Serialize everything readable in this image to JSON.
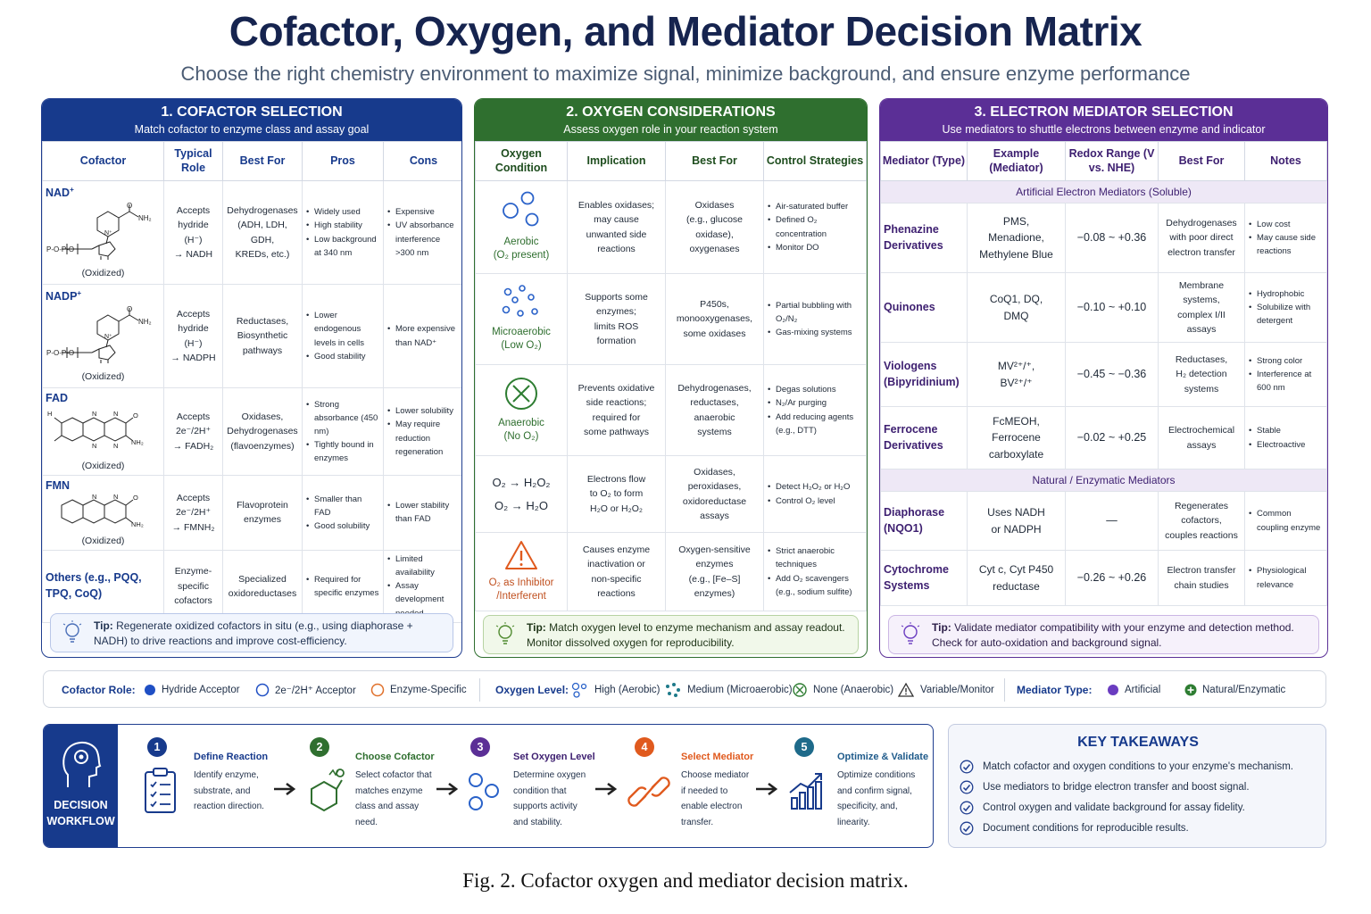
{
  "title": "Cofactor, Oxygen, and Mediator Decision Matrix",
  "subtitle": "Choose the right chemistry environment to maximize signal, minimize background, and ensure enzyme performance",
  "cofactor": {
    "heading": "1. COFACTOR SELECTION",
    "subheading": "Match cofactor to enzyme class and assay goal",
    "columns": [
      "Cofactor",
      "Typical Role",
      "Best For",
      "Pros",
      "Cons"
    ],
    "rows": [
      {
        "name": "NAD",
        "name_sup": "+",
        "state": "(Oxidized)",
        "role": [
          "Accepts",
          "hydride",
          "(H⁻)",
          "→ NADH"
        ],
        "best": [
          "Dehydrogenases",
          "(ADH, LDH, GDH,",
          "KREDs, etc.)"
        ],
        "pros": [
          "Widely used",
          "High stability",
          "Low background at 340 nm"
        ],
        "cons": [
          "Expensive",
          "UV absorbance interference >300 nm"
        ]
      },
      {
        "name": "NADP",
        "name_sup": "+",
        "state": "(Oxidized)",
        "role": [
          "Accepts",
          "hydride",
          "(H⁻)",
          "→ NADPH"
        ],
        "best": [
          "Reductases,",
          "Biosynthetic",
          "pathways"
        ],
        "pros": [
          "Lower endogenous levels in cells",
          "Good stability"
        ],
        "cons": [
          "More expensive than NAD⁺"
        ]
      },
      {
        "name": "FAD",
        "name_sup": "",
        "state": "(Oxidized)",
        "role": [
          "Accepts",
          "2e⁻/2H⁺",
          "→ FADH₂"
        ],
        "best": [
          "Oxidases,",
          "Dehydrogenases",
          "(flavoenzymes)"
        ],
        "pros": [
          "Strong absorbance (450 nm)",
          "Tightly bound in enzymes"
        ],
        "cons": [
          "Lower solubility",
          "May require reduction regeneration"
        ]
      },
      {
        "name": "FMN",
        "name_sup": "",
        "state": "(Oxidized)",
        "role": [
          "Accepts",
          "2e⁻/2H⁺",
          "→ FMNH₂"
        ],
        "best": [
          "Flavoprotein",
          "enzymes"
        ],
        "pros": [
          "Smaller than FAD",
          "Good solubility"
        ],
        "cons": [
          "Lower stability than FAD"
        ]
      },
      {
        "name": "Others (e.g., PQQ, TPQ, CoQ)",
        "name_sup": "",
        "state": "",
        "role": [
          "Enzyme-",
          "specific",
          "cofactors"
        ],
        "best": [
          "Specialized",
          "oxidoreductases"
        ],
        "pros": [
          "Required for specific enzymes"
        ],
        "cons": [
          "Limited availability",
          "Assay development needed"
        ]
      }
    ],
    "tip_label": "Tip:",
    "tip": "Regenerate oxidized cofactors in situ (e.g., using diaphorase + NADH) to drive reactions and improve cost-efficiency."
  },
  "oxygen": {
    "heading": "2. OXYGEN CONSIDERATIONS",
    "subheading": "Assess oxygen role in your reaction system",
    "columns": [
      "Oxygen Condition",
      "Implication",
      "Best For",
      "Control Strategies"
    ],
    "rows": [
      {
        "label": [
          "Aerobic",
          "(O₂ present)"
        ],
        "implication": [
          "Enables oxidases;",
          "may cause",
          "unwanted side",
          "reactions"
        ],
        "best": [
          "Oxidases",
          "(e.g., glucose",
          "oxidase),",
          "oxygenases"
        ],
        "control": [
          "Air-saturated buffer",
          "Defined O₂ concentration",
          "Monitor DO"
        ]
      },
      {
        "label": [
          "Microaerobic",
          "(Low O₂)"
        ],
        "implication": [
          "Supports some",
          "enzymes;",
          "limits ROS",
          "formation"
        ],
        "best": [
          "P450s,",
          "monooxygenases,",
          "some oxidases"
        ],
        "control": [
          "Partial bubbling with O₂/N₂",
          "Gas-mixing systems"
        ]
      },
      {
        "label": [
          "Anaerobic",
          "(No O₂)"
        ],
        "implication": [
          "Prevents oxidative",
          "side reactions;",
          "required for",
          "some pathways"
        ],
        "best": [
          "Dehydrogenases,",
          "reductases,",
          "anaerobic",
          "systems"
        ],
        "control": [
          "Degas solutions",
          "N₂/Ar purging",
          "Add reducing agents (e.g., DTT)"
        ]
      },
      {
        "label": [
          "O₂ → H₂O₂",
          "O₂ → H₂O"
        ],
        "implication": [
          "Electrons flow",
          "to O₂ to form",
          "H₂O or H₂O₂"
        ],
        "best": [
          "Oxidases,",
          "peroxidases,",
          "oxidoreductase",
          "assays"
        ],
        "control": [
          "Detect H₂O₂ or H₂O",
          "Control O₂ level"
        ]
      },
      {
        "label": [
          "O₂ as Inhibitor",
          "/Interferent"
        ],
        "implication": [
          "Causes enzyme",
          "inactivation or",
          "non-specific",
          "reactions"
        ],
        "best": [
          "Oxygen-sensitive",
          "enzymes",
          "(e.g., [Fe–S]",
          "enzymes)"
        ],
        "control": [
          "Strict anaerobic techniques",
          "Add O₂ scavengers (e.g., sodium sulfite)"
        ]
      }
    ],
    "tip_label": "Tip:",
    "tip": "Match oxygen level to enzyme mechanism and assay readout. Monitor dissolved oxygen for reproducibility."
  },
  "mediator": {
    "heading": "3. ELECTRON MEDIATOR SELECTION",
    "subheading": "Use mediators to shuttle electrons between enzyme and indicator",
    "columns": [
      "Mediator (Type)",
      "Example (Mediator)",
      "Redox Range (V vs. NHE)",
      "Best For",
      "Notes"
    ],
    "group_artificial": "Artificial Electron Mediators (Soluble)",
    "group_natural": "Natural / Enzymatic Mediators",
    "artificial": [
      {
        "name": [
          "Phenazine",
          "Derivatives"
        ],
        "example": [
          "PMS,",
          "Menadione,",
          "Methylene Blue"
        ],
        "redox": "−0.08 ~ +0.36",
        "best": [
          "Dehydrogenases",
          "with poor direct",
          "electron transfer"
        ],
        "notes": [
          "Low cost",
          "May cause side reactions"
        ]
      },
      {
        "name": [
          "Quinones"
        ],
        "example": [
          "CoQ1, DQ,",
          "DMQ"
        ],
        "redox": "−0.10 ~ +0.10",
        "best": [
          "Membrane",
          "systems,",
          "complex I/II",
          "assays"
        ],
        "notes": [
          "Hydrophobic",
          "Solubilize with detergent"
        ]
      },
      {
        "name": [
          "Viologens",
          "(Bipyridinium)"
        ],
        "example": [
          "MV²⁺/⁺,",
          "BV²⁺/⁺"
        ],
        "redox": "−0.45 ~ −0.36",
        "best": [
          "Reductases,",
          "H₂ detection",
          "systems"
        ],
        "notes": [
          "Strong color",
          "Interference at 600 nm"
        ]
      },
      {
        "name": [
          "Ferrocene",
          "Derivatives"
        ],
        "example": [
          "FcMEOH,",
          "Ferrocene",
          "carboxylate"
        ],
        "redox": "−0.02 ~ +0.25",
        "best": [
          "Electrochemical",
          "assays"
        ],
        "notes": [
          "Stable",
          "Electroactive"
        ]
      }
    ],
    "natural": [
      {
        "name": [
          "Diaphorase",
          "(NQO1)"
        ],
        "example": [
          "Uses NADH",
          "or NADPH"
        ],
        "redox": "—",
        "best": [
          "Regenerates",
          "cofactors,",
          "couples reactions"
        ],
        "notes": [
          "Common coupling enzyme"
        ]
      },
      {
        "name": [
          "Cytochrome",
          "Systems"
        ],
        "example": [
          "Cyt c, Cyt P450",
          "reductase"
        ],
        "redox": "−0.26 ~ +0.26",
        "best": [
          "Electron transfer",
          "chain studies"
        ],
        "notes": [
          "Physiological relevance"
        ]
      }
    ],
    "tip_label": "Tip:",
    "tip": "Validate mediator compatibility with your enzyme and detection method. Check for auto-oxidation and background signal."
  },
  "legend": {
    "cofactor_role_label": "Cofactor Role:",
    "hydride": "Hydride Acceptor",
    "two_e": "2e⁻/2H⁺ Acceptor",
    "enzyme_specific": "Enzyme-Specific",
    "oxygen_level_label": "Oxygen Level:",
    "high": "High (Aerobic)",
    "medium": "Medium (Microaerobic)",
    "none": "None (Anaerobic)",
    "variable": "Variable/Monitor",
    "mediator_type_label": "Mediator Type:",
    "artificial": "Artificial",
    "natural": "Natural/Enzymatic",
    "colors": {
      "blue": "#1f4fc4",
      "orange": "#e0702a",
      "purple": "#6a3cc0",
      "green": "#2e7d32"
    }
  },
  "workflow": {
    "label": [
      "DECISION",
      "WORKFLOW"
    ],
    "steps": [
      {
        "num": "1",
        "title": "Define Reaction",
        "desc": [
          "Identify enzyme,",
          "substrate, and",
          "reaction direction."
        ],
        "color": "#173a8c"
      },
      {
        "num": "2",
        "title": "Choose Cofactor",
        "desc": [
          "Select cofactor that",
          "matches enzyme",
          "class and assay",
          "need."
        ],
        "color": "#2f6f2f"
      },
      {
        "num": "3",
        "title": "Set Oxygen Level",
        "desc": [
          "Determine oxygen",
          "condition that",
          "supports activity",
          "and stability."
        ],
        "color": "#5b2f96"
      },
      {
        "num": "4",
        "title": "Select Mediator",
        "desc": [
          "Choose mediator",
          "if needed to",
          "enable electron",
          "transfer."
        ],
        "color": "#e05a1e"
      },
      {
        "num": "5",
        "title": "Optimize & Validate",
        "desc": [
          "Optimize conditions",
          "and confirm signal,",
          "specificity, and,",
          "linearity."
        ],
        "color": "#1e6a8a"
      }
    ]
  },
  "takeaways": {
    "heading": "KEY TAKEAWAYS",
    "items": [
      "Match cofactor and oxygen conditions to your enzyme's mechanism.",
      "Use mediators to bridge electron transfer and boost signal.",
      "Control oxygen and validate background for assay fidelity.",
      "Document conditions for reproducible results."
    ]
  },
  "caption": "Fig. 2.  Cofactor oxygen and mediator decision matrix."
}
